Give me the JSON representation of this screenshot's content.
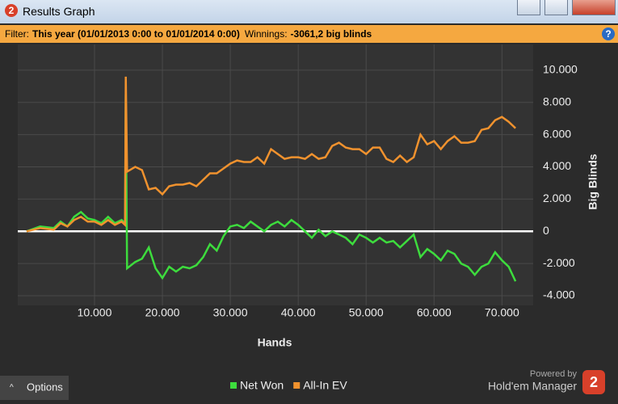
{
  "window": {
    "icon": "2",
    "title": "Results Graph"
  },
  "filter": {
    "label": "Filter:",
    "value": "This year (01/01/2013 0:00 to 01/01/2014 0:00)",
    "winnings_label": "Winnings:",
    "winnings_value": "-3061,2 big blinds"
  },
  "chart_data": {
    "type": "line",
    "xlabel": "Hands",
    "ylabel": "Big Blinds",
    "x": [
      0,
      2000,
      4000,
      5000,
      6000,
      7000,
      8000,
      9000,
      10000,
      11000,
      12000,
      13000,
      14000,
      14500,
      14600,
      14800,
      16000,
      17000,
      18000,
      19000,
      20000,
      21000,
      22000,
      23000,
      24000,
      25000,
      26000,
      27000,
      28000,
      29000,
      30000,
      31000,
      32000,
      33000,
      34000,
      35000,
      36000,
      37000,
      38000,
      39000,
      40000,
      41000,
      42000,
      43000,
      44000,
      45000,
      46000,
      47000,
      48000,
      49000,
      50000,
      51000,
      52000,
      53000,
      54000,
      55000,
      56000,
      57000,
      58000,
      59000,
      60000,
      61000,
      62000,
      63000,
      64000,
      65000,
      66000,
      67000,
      68000,
      69000,
      70000,
      71000,
      72000
    ],
    "series": [
      {
        "name": "Net Won",
        "color": "#3ddc3d",
        "values": [
          0,
          300,
          200,
          600,
          300,
          900,
          1200,
          800,
          700,
          500,
          900,
          500,
          700,
          500,
          8500,
          -2300,
          -1900,
          -1700,
          -1000,
          -2300,
          -2900,
          -2200,
          -2500,
          -2200,
          -2300,
          -2100,
          -1600,
          -800,
          -1200,
          -300,
          300,
          400,
          200,
          600,
          300,
          0,
          400,
          600,
          300,
          700,
          400,
          0,
          -400,
          100,
          -300,
          0,
          -200,
          -400,
          -800,
          -200,
          -400,
          -700,
          -400,
          -700,
          -600,
          -1000,
          -600,
          -200,
          -1600,
          -1100,
          -1400,
          -1800,
          -1200,
          -1400,
          -2000,
          -2200,
          -2700,
          -2200,
          -2000,
          -1300,
          -1800,
          -2200,
          -3100
        ]
      },
      {
        "name": "All-In EV",
        "color": "#f0922e",
        "values": [
          0,
          200,
          100,
          500,
          300,
          700,
          900,
          600,
          600,
          400,
          700,
          400,
          600,
          400,
          9600,
          3700,
          4000,
          3800,
          2600,
          2700,
          2300,
          2800,
          2900,
          2900,
          3000,
          2800,
          3200,
          3600,
          3600,
          3900,
          4200,
          4400,
          4300,
          4300,
          4600,
          4200,
          5100,
          4800,
          4500,
          4600,
          4600,
          4500,
          4800,
          4500,
          4600,
          5300,
          5500,
          5200,
          5100,
          5100,
          4800,
          5200,
          5200,
          4500,
          4300,
          4700,
          4300,
          4600,
          6000,
          5400,
          5600,
          5100,
          5600,
          5900,
          5500,
          5500,
          5600,
          6300,
          6400,
          6900,
          7100,
          6800,
          6400
        ]
      }
    ],
    "xlim": [
      -1300,
      74600
    ],
    "xticks": [
      {
        "value": 10000,
        "label": "10.000"
      },
      {
        "value": 20000,
        "label": "20.000"
      },
      {
        "value": 30000,
        "label": "30.000"
      },
      {
        "value": 40000,
        "label": "40.000"
      },
      {
        "value": 50000,
        "label": "50.000"
      },
      {
        "value": 60000,
        "label": "60.000"
      },
      {
        "value": 70000,
        "label": "70.000"
      }
    ],
    "ylim": [
      -4600,
      11600
    ],
    "yticks": [
      {
        "value": 10000,
        "label": "10.000"
      },
      {
        "value": 8000,
        "label": "8.000"
      },
      {
        "value": 6000,
        "label": "6.000"
      },
      {
        "value": 4000,
        "label": "4.000"
      },
      {
        "value": 2000,
        "label": "2.000"
      },
      0,
      {
        "value": -2000,
        "label": "-2.000"
      },
      {
        "value": -4000,
        "label": "-4.000"
      }
    ],
    "grid": true,
    "zero_line": true
  },
  "footer": {
    "options": "Options",
    "powered_by": "Powered by",
    "brand": "Hold'em Manager",
    "logo": "2"
  }
}
